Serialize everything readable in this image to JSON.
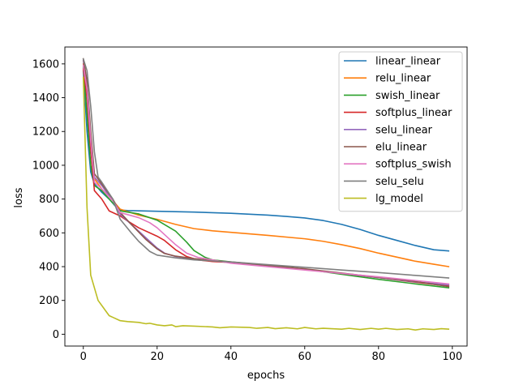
{
  "chart_data": {
    "type": "line",
    "xlabel": "epochs",
    "ylabel": "loss",
    "xlim": [
      -5,
      104
    ],
    "ylim": [
      -70,
      1700
    ],
    "xticks": [
      0,
      20,
      40,
      60,
      80,
      100
    ],
    "yticks": [
      0,
      200,
      400,
      600,
      800,
      1000,
      1200,
      1400,
      1600
    ],
    "legend_position": "top-right",
    "grid": false,
    "series": [
      {
        "name": "linear_linear",
        "color": "#1f77b4",
        "points": [
          [
            0,
            1560
          ],
          [
            1,
            1200
          ],
          [
            2,
            960
          ],
          [
            3,
            890
          ],
          [
            5,
            840
          ],
          [
            7,
            800
          ],
          [
            9,
            750
          ],
          [
            10,
            735
          ],
          [
            12,
            732
          ],
          [
            20,
            728
          ],
          [
            30,
            723
          ],
          [
            40,
            716
          ],
          [
            50,
            705
          ],
          [
            55,
            697
          ],
          [
            60,
            688
          ],
          [
            65,
            673
          ],
          [
            70,
            650
          ],
          [
            75,
            620
          ],
          [
            80,
            585
          ],
          [
            85,
            555
          ],
          [
            90,
            525
          ],
          [
            95,
            500
          ],
          [
            99,
            493
          ]
        ]
      },
      {
        "name": "relu_linear",
        "color": "#ff7f0e",
        "points": [
          [
            0,
            1600
          ],
          [
            1,
            1400
          ],
          [
            2,
            1100
          ],
          [
            3,
            920
          ],
          [
            5,
            860
          ],
          [
            8,
            790
          ],
          [
            10,
            740
          ],
          [
            15,
            705
          ],
          [
            20,
            680
          ],
          [
            25,
            650
          ],
          [
            30,
            625
          ],
          [
            35,
            612
          ],
          [
            40,
            603
          ],
          [
            50,
            585
          ],
          [
            60,
            565
          ],
          [
            65,
            550
          ],
          [
            70,
            530
          ],
          [
            75,
            507
          ],
          [
            80,
            480
          ],
          [
            85,
            456
          ],
          [
            90,
            432
          ],
          [
            95,
            414
          ],
          [
            99,
            400
          ]
        ]
      },
      {
        "name": "swish_linear",
        "color": "#2ca02c",
        "points": [
          [
            0,
            1580
          ],
          [
            1,
            1300
          ],
          [
            2,
            1000
          ],
          [
            3,
            880
          ],
          [
            5,
            850
          ],
          [
            7,
            800
          ],
          [
            10,
            730
          ],
          [
            15,
            712
          ],
          [
            20,
            675
          ],
          [
            25,
            610
          ],
          [
            28,
            545
          ],
          [
            30,
            495
          ],
          [
            33,
            455
          ],
          [
            35,
            440
          ],
          [
            40,
            428
          ],
          [
            50,
            408
          ],
          [
            60,
            385
          ],
          [
            70,
            355
          ],
          [
            80,
            325
          ],
          [
            90,
            298
          ],
          [
            99,
            275
          ]
        ]
      },
      {
        "name": "softplus_linear",
        "color": "#d62728",
        "points": [
          [
            0,
            1570
          ],
          [
            1,
            1400
          ],
          [
            2,
            1100
          ],
          [
            3,
            850
          ],
          [
            5,
            800
          ],
          [
            7,
            730
          ],
          [
            10,
            700
          ],
          [
            12,
            670
          ],
          [
            15,
            630
          ],
          [
            20,
            580
          ],
          [
            22,
            555
          ],
          [
            25,
            500
          ],
          [
            28,
            460
          ],
          [
            31,
            440
          ],
          [
            35,
            430
          ],
          [
            40,
            425
          ],
          [
            50,
            405
          ],
          [
            60,
            385
          ],
          [
            70,
            360
          ],
          [
            80,
            335
          ],
          [
            90,
            308
          ],
          [
            99,
            285
          ]
        ]
      },
      {
        "name": "selu_linear",
        "color": "#9467bd",
        "points": [
          [
            0,
            1620
          ],
          [
            1,
            1450
          ],
          [
            2,
            1150
          ],
          [
            3,
            930
          ],
          [
            5,
            880
          ],
          [
            8,
            790
          ],
          [
            10,
            710
          ],
          [
            13,
            650
          ],
          [
            17,
            570
          ],
          [
            20,
            510
          ],
          [
            22,
            480
          ],
          [
            25,
            460
          ],
          [
            30,
            445
          ],
          [
            40,
            425
          ],
          [
            50,
            405
          ],
          [
            60,
            385
          ],
          [
            70,
            360
          ],
          [
            80,
            335
          ],
          [
            90,
            310
          ],
          [
            99,
            292
          ]
        ]
      },
      {
        "name": "elu_linear",
        "color": "#8c564b",
        "points": [
          [
            0,
            1630
          ],
          [
            1,
            1500
          ],
          [
            2,
            1200
          ],
          [
            3,
            950
          ],
          [
            5,
            890
          ],
          [
            8,
            800
          ],
          [
            10,
            720
          ],
          [
            13,
            650
          ],
          [
            17,
            560
          ],
          [
            20,
            505
          ],
          [
            22,
            478
          ],
          [
            25,
            462
          ],
          [
            30,
            447
          ],
          [
            40,
            427
          ],
          [
            50,
            407
          ],
          [
            60,
            387
          ],
          [
            70,
            362
          ],
          [
            80,
            337
          ],
          [
            90,
            312
          ],
          [
            99,
            282
          ]
        ]
      },
      {
        "name": "softplus_swish",
        "color": "#e377c2",
        "points": [
          [
            0,
            1590
          ],
          [
            1,
            1450
          ],
          [
            2,
            1150
          ],
          [
            3,
            900
          ],
          [
            5,
            860
          ],
          [
            8,
            790
          ],
          [
            10,
            720
          ],
          [
            15,
            690
          ],
          [
            18,
            660
          ],
          [
            20,
            630
          ],
          [
            22,
            590
          ],
          [
            25,
            530
          ],
          [
            28,
            480
          ],
          [
            31,
            455
          ],
          [
            35,
            440
          ],
          [
            40,
            420
          ],
          [
            50,
            400
          ],
          [
            60,
            380
          ],
          [
            70,
            360
          ],
          [
            80,
            340
          ],
          [
            90,
            318
          ],
          [
            99,
            298
          ]
        ]
      },
      {
        "name": "selu_selu",
        "color": "#7f7f7f",
        "points": [
          [
            0,
            1630
          ],
          [
            1,
            1560
          ],
          [
            2,
            1350
          ],
          [
            3,
            1080
          ],
          [
            4,
            930
          ],
          [
            5,
            900
          ],
          [
            8,
            800
          ],
          [
            10,
            680
          ],
          [
            13,
            600
          ],
          [
            15,
            550
          ],
          [
            18,
            490
          ],
          [
            20,
            468
          ],
          [
            25,
            452
          ],
          [
            30,
            440
          ],
          [
            40,
            428
          ],
          [
            50,
            412
          ],
          [
            60,
            396
          ],
          [
            70,
            380
          ],
          [
            80,
            365
          ],
          [
            90,
            348
          ],
          [
            99,
            333
          ]
        ]
      },
      {
        "name": "lg_model",
        "color": "#bcbd22",
        "points": [
          [
            0,
            1520
          ],
          [
            1,
            750
          ],
          [
            2,
            350
          ],
          [
            4,
            200
          ],
          [
            6,
            140
          ],
          [
            7,
            110
          ],
          [
            8,
            100
          ],
          [
            10,
            80
          ],
          [
            12,
            75
          ],
          [
            15,
            70
          ],
          [
            17,
            62
          ],
          [
            18,
            65
          ],
          [
            20,
            55
          ],
          [
            22,
            50
          ],
          [
            24,
            55
          ],
          [
            25,
            45
          ],
          [
            27,
            50
          ],
          [
            30,
            48
          ],
          [
            35,
            43
          ],
          [
            37,
            38
          ],
          [
            40,
            43
          ],
          [
            45,
            40
          ],
          [
            47,
            35
          ],
          [
            50,
            40
          ],
          [
            52,
            33
          ],
          [
            55,
            38
          ],
          [
            58,
            32
          ],
          [
            60,
            40
          ],
          [
            63,
            32
          ],
          [
            65,
            35
          ],
          [
            70,
            30
          ],
          [
            72,
            35
          ],
          [
            75,
            28
          ],
          [
            78,
            35
          ],
          [
            80,
            30
          ],
          [
            82,
            35
          ],
          [
            85,
            28
          ],
          [
            88,
            32
          ],
          [
            90,
            25
          ],
          [
            92,
            32
          ],
          [
            95,
            28
          ],
          [
            97,
            33
          ],
          [
            99,
            30
          ]
        ]
      }
    ]
  }
}
